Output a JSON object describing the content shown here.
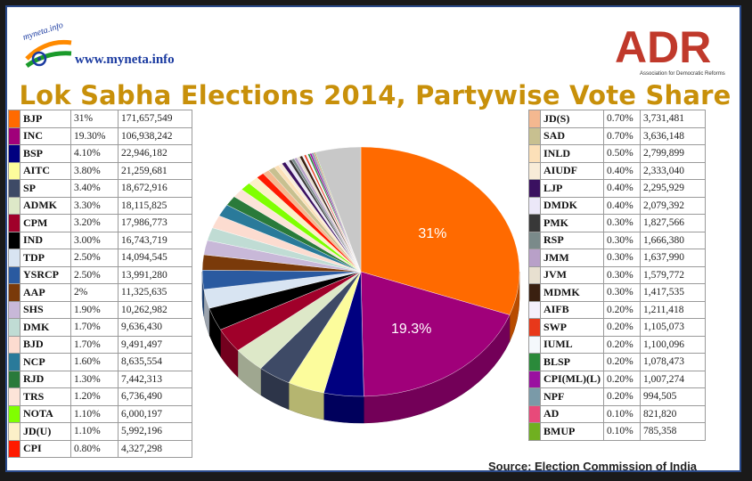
{
  "header": {
    "logo_text": "myneta.info",
    "site": "www.myneta.info",
    "adr_text": "ADR",
    "adr_tagline": "Association for Democratic Reforms",
    "title": "Lok Sabha Elections 2014, Partywise Vote Share"
  },
  "source": "Source: Election Commission of India",
  "colors": {
    "frame": "#2a4a8a",
    "title": "#c8900a",
    "adr_red": "#c0392b"
  },
  "chart_data": {
    "type": "pie",
    "title": "Lok Sabha Elections 2014, Partywise Vote Share",
    "slice_labels": {
      "BJP": "31%",
      "INC": "19.3%"
    },
    "legend_left": [
      {
        "name": "BJP",
        "pct": "31%",
        "votes": "171,657,549",
        "value": 31,
        "color": "#ff6a00"
      },
      {
        "name": "INC",
        "pct": "19.30%",
        "votes": "106,938,242",
        "value": 19.3,
        "color": "#a0007a"
      },
      {
        "name": "BSP",
        "pct": "4.10%",
        "votes": "22,946,182",
        "value": 4.1,
        "color": "#000080"
      },
      {
        "name": "AITC",
        "pct": "3.80%",
        "votes": "21,259,681",
        "value": 3.8,
        "color": "#fcfc9c"
      },
      {
        "name": "SP",
        "pct": "3.40%",
        "votes": "18,672,916",
        "value": 3.4,
        "color": "#3e4a66"
      },
      {
        "name": "ADMK",
        "pct": "3.30%",
        "votes": "18,115,825",
        "value": 3.3,
        "color": "#dde8c8"
      },
      {
        "name": "CPM",
        "pct": "3.20%",
        "votes": "17,986,773",
        "value": 3.2,
        "color": "#a0002a"
      },
      {
        "name": "IND",
        "pct": "3.00%",
        "votes": "16,743,719",
        "value": 3.0,
        "color": "#000000"
      },
      {
        "name": "TDP",
        "pct": "2.50%",
        "votes": "14,094,545",
        "value": 2.5,
        "color": "#d8e4f2"
      },
      {
        "name": "YSRCP",
        "pct": "2.50%",
        "votes": "13,991,280",
        "value": 2.5,
        "color": "#2a5aa0"
      },
      {
        "name": "AAP",
        "pct": "2%",
        "votes": "11,325,635",
        "value": 2.0,
        "color": "#7a3a0a"
      },
      {
        "name": "SHS",
        "pct": "1.90%",
        "votes": "10,262,982",
        "value": 1.9,
        "color": "#c8b8d8"
      },
      {
        "name": "DMK",
        "pct": "1.70%",
        "votes": "9,636,430",
        "value": 1.7,
        "color": "#c0dcd4"
      },
      {
        "name": "BJD",
        "pct": "1.70%",
        "votes": "9,491,497",
        "value": 1.7,
        "color": "#fcdcd0"
      },
      {
        "name": "NCP",
        "pct": "1.60%",
        "votes": "8,635,554",
        "value": 1.6,
        "color": "#2a7a9a"
      },
      {
        "name": "RJD",
        "pct": "1.30%",
        "votes": "7,442,313",
        "value": 1.3,
        "color": "#2a7a3a"
      },
      {
        "name": "TRS",
        "pct": "1.20%",
        "votes": "6,736,490",
        "value": 1.2,
        "color": "#fce4d8"
      },
      {
        "name": "NOTA",
        "pct": "1.10%",
        "votes": "6,000,197",
        "value": 1.1,
        "color": "#80ff00"
      },
      {
        "name": "JD(U)",
        "pct": "1.10%",
        "votes": "5,992,196",
        "value": 1.1,
        "color": "#fcf0c8"
      },
      {
        "name": "CPI",
        "pct": "0.80%",
        "votes": "4,327,298",
        "value": 0.8,
        "color": "#ff1a00"
      }
    ],
    "legend_right": [
      {
        "name": "JD(S)",
        "pct": "0.70%",
        "votes": "3,731,481",
        "value": 0.7,
        "color": "#f4b890"
      },
      {
        "name": "SAD",
        "pct": "0.70%",
        "votes": "3,636,148",
        "value": 0.7,
        "color": "#c8c090"
      },
      {
        "name": "INLD",
        "pct": "0.50%",
        "votes": "2,799,899",
        "value": 0.5,
        "color": "#fce0b8"
      },
      {
        "name": "AIUDF",
        "pct": "0.40%",
        "votes": "2,333,040",
        "value": 0.4,
        "color": "#f8ecd8"
      },
      {
        "name": "LJP",
        "pct": "0.40%",
        "votes": "2,295,929",
        "value": 0.4,
        "color": "#3a1060"
      },
      {
        "name": "DMDK",
        "pct": "0.40%",
        "votes": "2,079,392",
        "value": 0.4,
        "color": "#ece8f8"
      },
      {
        "name": "PMK",
        "pct": "0.30%",
        "votes": "1,827,566",
        "value": 0.3,
        "color": "#383838"
      },
      {
        "name": "RSP",
        "pct": "0.30%",
        "votes": "1,666,380",
        "value": 0.3,
        "color": "#7a8a8a"
      },
      {
        "name": "JMM",
        "pct": "0.30%",
        "votes": "1,637,990",
        "value": 0.3,
        "color": "#b8a0c8"
      },
      {
        "name": "JVM",
        "pct": "0.30%",
        "votes": "1,579,772",
        "value": 0.3,
        "color": "#e8e0d0"
      },
      {
        "name": "MDMK",
        "pct": "0.30%",
        "votes": "1,417,535",
        "value": 0.3,
        "color": "#3a2010"
      },
      {
        "name": "AIFB",
        "pct": "0.20%",
        "votes": "1,211,418",
        "value": 0.2,
        "color": "#f4f0fc"
      },
      {
        "name": "SWP",
        "pct": "0.20%",
        "votes": "1,105,073",
        "value": 0.2,
        "color": "#e8381a"
      },
      {
        "name": "IUML",
        "pct": "0.20%",
        "votes": "1,100,096",
        "value": 0.2,
        "color": "#f4f8fc"
      },
      {
        "name": "BLSP",
        "pct": "0.20%",
        "votes": "1,078,473",
        "value": 0.2,
        "color": "#2a8a3a"
      },
      {
        "name": "CPI(ML)(L)",
        "pct": "0.20%",
        "votes": "1,007,274",
        "value": 0.2,
        "color": "#9a10a0"
      },
      {
        "name": "NPF",
        "pct": "0.20%",
        "votes": "994,505",
        "value": 0.2,
        "color": "#7a9aa8"
      },
      {
        "name": "AD",
        "pct": "0.10%",
        "votes": "821,820",
        "value": 0.1,
        "color": "#e84a7a"
      },
      {
        "name": "BMUP",
        "pct": "0.10%",
        "votes": "785,358",
        "value": 0.1,
        "color": "#70b020"
      }
    ],
    "others": {
      "value": 4.7,
      "color": "#c8c8c8"
    }
  }
}
